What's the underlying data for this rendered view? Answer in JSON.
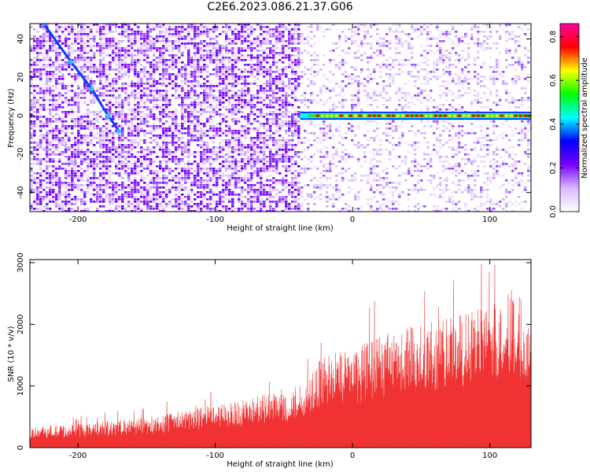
{
  "title": "C2E6.2023.086.21.37.G06",
  "chart_data": [
    {
      "type": "heatmap",
      "xlabel": "Height of straight line (km)",
      "ylabel": "Frequency (Hz)",
      "xlim": [
        -235,
        130
      ],
      "ylim": [
        -50,
        48
      ],
      "xticks": [
        -200,
        -100,
        0,
        100
      ],
      "yticks": [
        -40,
        -20,
        0,
        20,
        40
      ],
      "grid": false,
      "colorbar": {
        "label": "Normalized spectral amplitude",
        "range": [
          0,
          0.86
        ],
        "ticks": [
          0.0,
          0.2,
          0.4,
          0.6,
          0.8
        ],
        "palette": [
          "#ffffff",
          "#d8b8ff",
          "#7a00ff",
          "#0000ff",
          "#00ffff",
          "#00ff00",
          "#ffff00",
          "#ff0000",
          "#ff00a0"
        ]
      },
      "features": {
        "carrier_line": {
          "frequency": 0,
          "x_range": [
            -38,
            130
          ],
          "amplitude": 0.8
        },
        "diagonal_trace": {
          "points": [
            [
              -225,
              48
            ],
            [
              -205,
              28
            ],
            [
              -190,
              14
            ],
            [
              -178,
              0
            ],
            [
              -170,
              -8
            ]
          ],
          "amplitude": 0.25
        },
        "noise_transition_x": -38
      }
    },
    {
      "type": "area",
      "xlabel": "Height of straight line (km)",
      "ylabel": "SNR (10 * v/v)",
      "xlim": [
        -235,
        130
      ],
      "ylim": [
        0,
        3050
      ],
      "xticks": [
        -200,
        -100,
        0,
        100
      ],
      "yticks": [
        0,
        1000,
        2000,
        3000
      ],
      "grid": false,
      "color": "#f03232",
      "envelope": [
        {
          "x": -235,
          "y": 350
        },
        {
          "x": -200,
          "y": 380
        },
        {
          "x": -150,
          "y": 500
        },
        {
          "x": -100,
          "y": 700
        },
        {
          "x": -60,
          "y": 880
        },
        {
          "x": -40,
          "y": 1000
        },
        {
          "x": -20,
          "y": 1500
        },
        {
          "x": 0,
          "y": 1650
        },
        {
          "x": 20,
          "y": 1800
        },
        {
          "x": 40,
          "y": 2000
        },
        {
          "x": 60,
          "y": 2100
        },
        {
          "x": 80,
          "y": 2200
        },
        {
          "x": 100,
          "y": 2300
        },
        {
          "x": 115,
          "y": 2600
        },
        {
          "x": 130,
          "y": 2400
        }
      ]
    }
  ]
}
